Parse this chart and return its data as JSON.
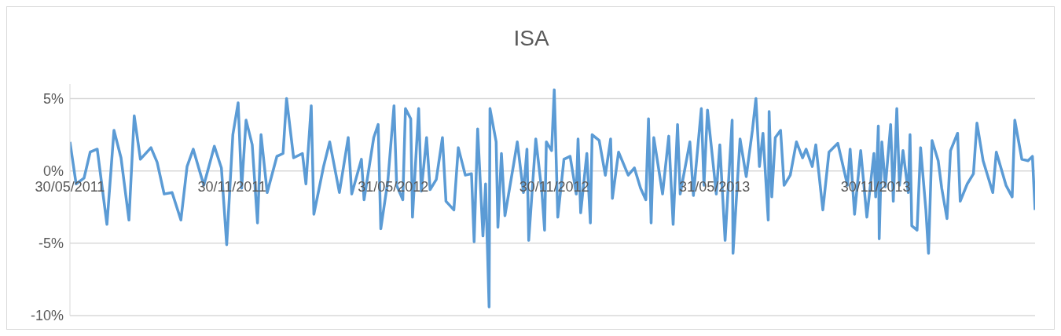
{
  "chart_data": {
    "type": "line",
    "title": "ISA",
    "x": [
      "2011-05-30",
      "2011-06-06",
      "2011-06-15",
      "2011-06-22",
      "2011-06-30",
      "2011-07-11",
      "2011-07-19",
      "2011-07-27",
      "2011-08-05",
      "2011-08-11",
      "2011-08-18",
      "2011-08-30",
      "2011-09-06",
      "2011-09-14",
      "2011-09-23",
      "2011-10-03",
      "2011-10-10",
      "2011-10-17",
      "2011-10-29",
      "2011-11-10",
      "2011-11-18",
      "2011-11-24",
      "2011-12-01",
      "2011-12-07",
      "2011-12-11",
      "2011-12-16",
      "2011-12-23",
      "2011-12-29",
      "2012-01-02",
      "2012-01-09",
      "2012-01-20",
      "2012-01-27",
      "2012-01-31",
      "2012-02-08",
      "2012-02-18",
      "2012-02-22",
      "2012-02-28",
      "2012-03-02",
      "2012-03-13",
      "2012-03-20",
      "2012-03-31",
      "2012-04-10",
      "2012-04-14",
      "2012-04-25",
      "2012-04-28",
      "2012-05-09",
      "2012-05-14",
      "2012-05-17",
      "2012-05-25",
      "2012-06-01",
      "2012-06-04",
      "2012-06-11",
      "2012-06-14",
      "2012-06-20",
      "2012-06-22",
      "2012-06-29",
      "2012-07-02",
      "2012-07-08",
      "2012-07-12",
      "2012-07-19",
      "2012-07-26",
      "2012-07-30",
      "2012-08-08",
      "2012-08-13",
      "2012-08-21",
      "2012-08-28",
      "2012-08-31",
      "2012-09-04",
      "2012-09-10",
      "2012-09-13",
      "2012-09-17",
      "2012-09-18",
      "2012-09-25",
      "2012-09-27",
      "2012-10-01",
      "2012-10-05",
      "2012-10-15",
      "2012-10-19",
      "2012-10-26",
      "2012-10-30",
      "2012-11-01",
      "2012-11-09",
      "2012-11-16",
      "2012-11-19",
      "2012-11-21",
      "2012-11-27",
      "2012-11-30",
      "2012-12-04",
      "2012-12-11",
      "2012-12-18",
      "2012-12-25",
      "2012-12-27",
      "2012-12-30",
      "2013-01-06",
      "2013-01-10",
      "2013-01-12",
      "2013-01-20",
      "2013-01-27",
      "2013-02-02",
      "2013-02-04",
      "2013-02-11",
      "2013-02-22",
      "2013-03-01",
      "2013-03-08",
      "2013-03-14",
      "2013-03-17",
      "2013-03-20",
      "2013-03-23",
      "2013-04-02",
      "2013-04-09",
      "2013-04-14",
      "2013-04-19",
      "2013-04-22",
      "2013-05-03",
      "2013-05-07",
      "2013-05-16",
      "2013-05-19",
      "2013-05-23",
      "2013-06-02",
      "2013-06-06",
      "2013-06-12",
      "2013-06-20",
      "2013-06-21",
      "2013-06-29",
      "2013-07-06",
      "2013-07-13",
      "2013-07-17",
      "2013-07-21",
      "2013-07-25",
      "2013-07-31",
      "2013-08-01",
      "2013-08-04",
      "2013-08-08",
      "2013-08-14",
      "2013-08-18",
      "2013-08-25",
      "2013-09-01",
      "2013-09-08",
      "2013-09-12",
      "2013-09-19",
      "2013-09-23",
      "2013-10-01",
      "2013-10-08",
      "2013-10-18",
      "2013-10-29",
      "2013-11-01",
      "2013-11-06",
      "2013-11-13",
      "2013-11-20",
      "2013-11-28",
      "2013-11-30",
      "2013-12-03",
      "2013-12-04",
      "2013-12-07",
      "2013-12-11",
      "2013-12-17",
      "2013-12-20",
      "2013-12-24",
      "2013-12-27",
      "2013-12-31",
      "2014-01-06",
      "2014-01-08",
      "2014-01-10",
      "2014-01-16",
      "2014-01-20",
      "2014-01-26",
      "2014-01-29",
      "2014-02-02",
      "2014-02-09",
      "2014-02-13",
      "2014-02-19",
      "2014-02-23",
      "2014-03-03",
      "2014-03-06",
      "2014-03-14",
      "2014-03-21",
      "2014-03-25",
      "2014-04-01",
      "2014-04-12",
      "2014-04-16",
      "2014-04-27",
      "2014-05-04",
      "2014-05-07",
      "2014-05-15",
      "2014-05-22",
      "2014-05-27",
      "2014-05-30"
    ],
    "series": [
      {
        "color": "#5b9bd5",
        "values": [
          2.0,
          -0.9,
          -0.5,
          1.3,
          1.5,
          -3.7,
          2.8,
          0.9,
          -3.4,
          3.8,
          0.8,
          1.6,
          0.6,
          -1.6,
          -1.5,
          -3.4,
          0.3,
          1.5,
          -1.0,
          1.7,
          0.2,
          -5.1,
          2.5,
          4.7,
          -1.2,
          3.5,
          1.8,
          -3.6,
          2.5,
          -1.5,
          1.0,
          1.2,
          5.0,
          0.9,
          1.2,
          -0.9,
          4.5,
          -3.0,
          0.3,
          2.0,
          -1.5,
          2.3,
          -1.6,
          0.8,
          -2.0,
          2.3,
          3.2,
          -4.0,
          -0.7,
          4.5,
          -1.0,
          -2.0,
          4.3,
          3.6,
          -3.2,
          4.3,
          -1.4,
          2.3,
          -1.3,
          -0.6,
          2.3,
          -2.1,
          -2.7,
          1.6,
          -0.3,
          -0.2,
          -4.9,
          2.9,
          -4.5,
          -0.9,
          -9.4,
          4.3,
          2.0,
          -3.9,
          1.2,
          -3.1,
          0.5,
          2.0,
          -1.5,
          1.5,
          -4.8,
          2.2,
          -1.5,
          -4.1,
          2.0,
          1.4,
          5.6,
          -3.2,
          0.8,
          1.0,
          -1.6,
          2.2,
          -2.9,
          1.2,
          -3.6,
          2.5,
          2.1,
          -0.3,
          2.2,
          -1.9,
          1.3,
          -0.3,
          0.2,
          -1.2,
          -2.0,
          3.6,
          -3.6,
          2.3,
          -1.6,
          2.4,
          -3.7,
          3.2,
          -1.6,
          2.0,
          -1.7,
          4.3,
          -1.0,
          4.2,
          -1.6,
          1.8,
          -4.8,
          3.5,
          -5.7,
          2.2,
          -0.4,
          2.8,
          5.0,
          0.3,
          2.6,
          -3.4,
          4.1,
          -1.8,
          2.3,
          2.8,
          -1.0,
          -0.3,
          2.0,
          0.9,
          1.5,
          0.3,
          1.8,
          -2.7,
          1.3,
          1.9,
          -1.0,
          1.5,
          -3.0,
          1.4,
          -3.2,
          1.2,
          -1.8,
          3.1,
          -4.7,
          2.0,
          -1.1,
          3.2,
          -2.1,
          4.3,
          -1.0,
          1.4,
          -1.5,
          2.5,
          -3.8,
          -4.1,
          1.6,
          -2.7,
          -5.7,
          2.1,
          0.7,
          -1.2,
          -3.3,
          1.4,
          2.6,
          -2.1,
          -0.9,
          -0.2,
          3.3,
          0.7,
          -1.5,
          1.3,
          -1.0,
          -1.8,
          3.5,
          0.8,
          0.7,
          1.0,
          -2.7
        ]
      }
    ],
    "xlim": [
      "2011-05-30",
      "2014-05-30"
    ],
    "xticks": [
      {
        "value": "2011-05-30",
        "label": "30/05/2011"
      },
      {
        "value": "2011-11-30",
        "label": "30/11/2011"
      },
      {
        "value": "2012-05-31",
        "label": "31/05/2012"
      },
      {
        "value": "2012-11-30",
        "label": "30/11/2012"
      },
      {
        "value": "2013-05-31",
        "label": "31/05/2013"
      },
      {
        "value": "2013-11-30",
        "label": "30/11/2013"
      }
    ],
    "ylim": [
      -10,
      6
    ],
    "yticks": [
      {
        "value": -10,
        "label": "-10%"
      },
      {
        "value": -5,
        "label": "-5%"
      },
      {
        "value": 0,
        "label": "0%"
      },
      {
        "value": 5,
        "label": "5%"
      }
    ],
    "grid": "y"
  }
}
